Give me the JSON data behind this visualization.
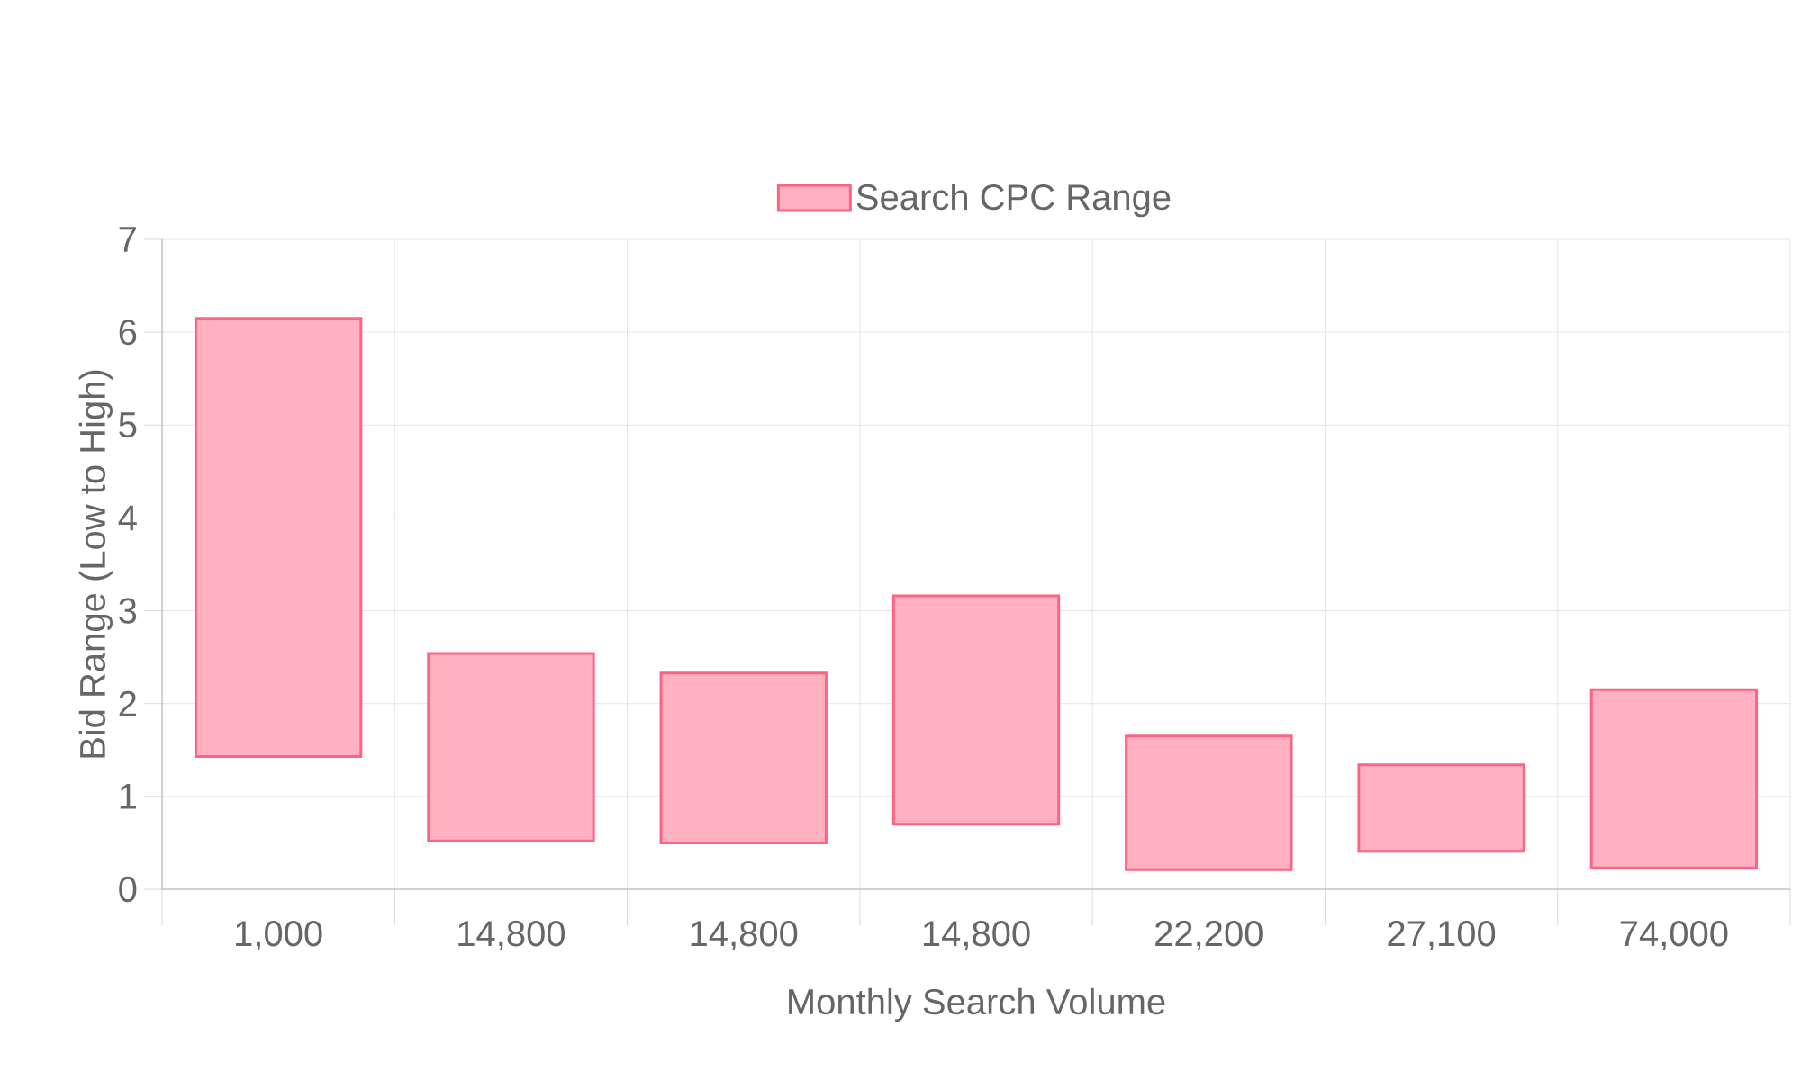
{
  "chart_data": {
    "type": "bar",
    "xlabel": "Monthly Search Volume",
    "ylabel": "Bid Range (Low to High)",
    "categories": [
      "1,000",
      "14,800",
      "14,800",
      "14,800",
      "22,200",
      "27,100",
      "74,000"
    ],
    "series": [
      {
        "name": "Search CPC Range",
        "color": "#ff6384",
        "values": [
          4.72,
          2.02,
          1.83,
          2.46,
          1.44,
          0.93,
          1.92
        ],
        "base": [
          1.43,
          0.52,
          0.5,
          0.7,
          0.21,
          0.41,
          0.23
        ]
      }
    ],
    "ylim": [
      0,
      7
    ],
    "yticks": [
      0,
      1,
      2,
      3,
      4,
      5,
      6,
      7
    ],
    "grid": true,
    "legend": "top"
  }
}
